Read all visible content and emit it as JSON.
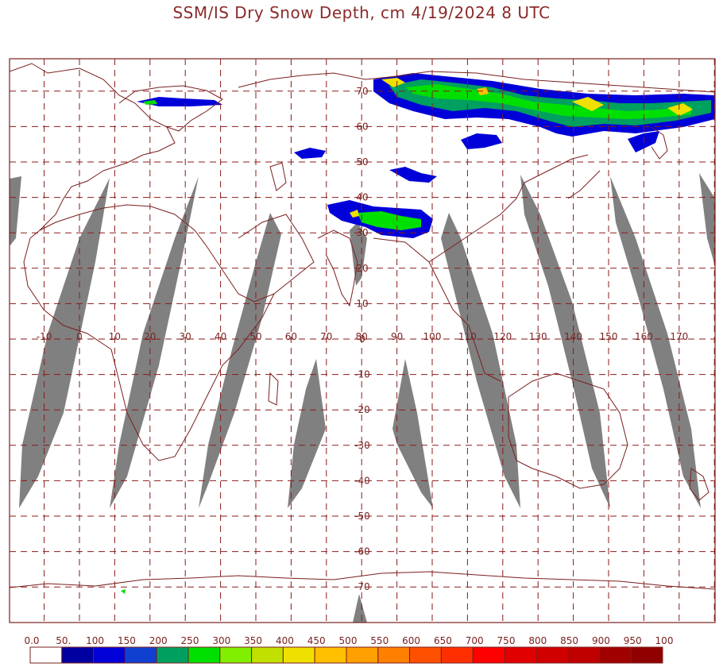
{
  "title": "SSM/IS Dry Snow Depth, cm 4/19/2024 8 UTC",
  "map": {
    "lon_labels": [
      "-10",
      "0",
      "10",
      "20",
      "30",
      "40",
      "50",
      "60",
      "70",
      "80",
      "90",
      "100",
      "110",
      "120",
      "130",
      "140",
      "150",
      "160",
      "170"
    ],
    "lon_values": [
      -10,
      0,
      10,
      20,
      30,
      40,
      50,
      60,
      70,
      80,
      90,
      100,
      110,
      120,
      130,
      140,
      150,
      160,
      170
    ],
    "lat_labels": [
      "70",
      "60",
      "50",
      "40",
      "30",
      "20",
      "10",
      "0",
      "-10",
      "-20",
      "-30",
      "-40",
      "-50",
      "-60",
      "-70"
    ],
    "lat_values": [
      70,
      60,
      50,
      40,
      30,
      20,
      10,
      0,
      -10,
      -20,
      -30,
      -40,
      -50,
      -60,
      -70
    ],
    "lon_range": [
      -20,
      180
    ],
    "lat_range": [
      -80,
      80
    ],
    "grid": true,
    "colors": {
      "frame": "#7a1f1f",
      "grid": "#8b1a1a",
      "coastline": "#7a1f1f",
      "no_data": "#808080"
    }
  },
  "legend": {
    "labels": [
      "0.0",
      "50.",
      "100",
      "150",
      "200",
      "250",
      "300",
      "350",
      "400",
      "450",
      "500",
      "550",
      "600",
      "650",
      "700",
      "750",
      "800",
      "850",
      "900",
      "950",
      "100"
    ],
    "colors": [
      "#ffffff",
      "#0000a0",
      "#0000d8",
      "#1040d0",
      "#00a060",
      "#00e000",
      "#80f000",
      "#c0e000",
      "#f0e000",
      "#ffc000",
      "#ffa000",
      "#ff8000",
      "#ff5000",
      "#ff3000",
      "#ff0000",
      "#e00000",
      "#d00000",
      "#c00000",
      "#a00000",
      "#900000"
    ]
  }
}
